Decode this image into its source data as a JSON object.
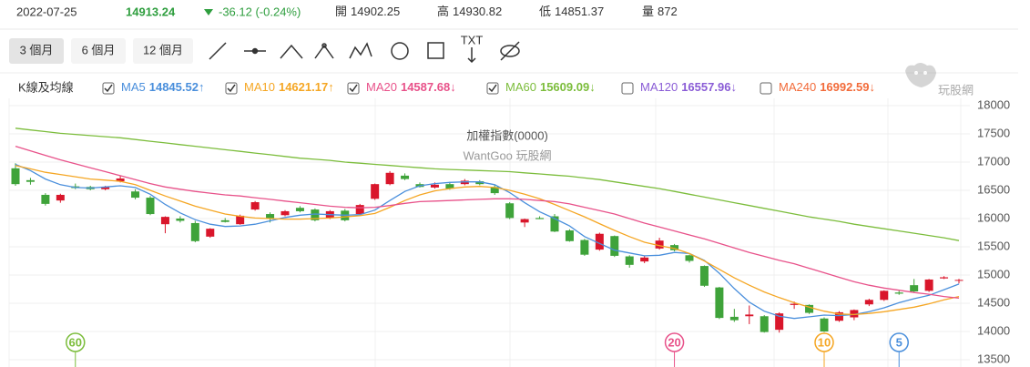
{
  "header": {
    "date": "2022-07-25",
    "price": "14913.24",
    "change": "-36.12 (-0.24%)",
    "stats": [
      {
        "label": "開",
        "value": "14902.25"
      },
      {
        "label": "高",
        "value": "14930.82"
      },
      {
        "label": "低",
        "value": "14851.37"
      },
      {
        "label": "量",
        "value": "872"
      }
    ]
  },
  "toolbar": {
    "ranges": [
      "3 個月",
      "6 個月",
      "12 個月"
    ],
    "active": 0,
    "text_tool": "TXT"
  },
  "legend_title": "K線及均線",
  "watermark": "玩股網",
  "chart_data": {
    "type": "candlestick",
    "title": "加權指數(0000)",
    "subtitle": "WantGoo 玩股網",
    "up_color": "#d9162b",
    "down_color": "#3fa33a",
    "grid": true,
    "ylim": [
      13500,
      18000
    ],
    "yticks": [
      13500,
      14000,
      14500,
      15000,
      15500,
      16000,
      16500,
      17000,
      17500,
      18000
    ],
    "candles": [
      [
        16890,
        16980,
        16580,
        16610
      ],
      [
        16680,
        16720,
        16600,
        16650
      ],
      [
        16420,
        16450,
        16230,
        16260
      ],
      [
        16320,
        16440,
        16280,
        16420
      ],
      [
        16570,
        16620,
        16520,
        16540
      ],
      [
        16560,
        16580,
        16500,
        16520
      ],
      [
        16520,
        16580,
        16500,
        16560
      ],
      [
        16660,
        16760,
        16640,
        16710
      ],
      [
        16480,
        16520,
        16340,
        16370
      ],
      [
        16370,
        16400,
        16060,
        16080
      ],
      [
        15900,
        16040,
        15740,
        16030
      ],
      [
        16000,
        16040,
        15930,
        15960
      ],
      [
        15920,
        15960,
        15580,
        15600
      ],
      [
        15680,
        15830,
        15660,
        15820
      ],
      [
        15970,
        16010,
        15930,
        15940
      ],
      [
        15900,
        16070,
        15890,
        16050
      ],
      [
        16160,
        16310,
        16140,
        16290
      ],
      [
        16080,
        16110,
        15930,
        16000
      ],
      [
        16060,
        16150,
        16040,
        16130
      ],
      [
        16190,
        16220,
        16110,
        16130
      ],
      [
        16160,
        16180,
        15950,
        15970
      ],
      [
        16010,
        16150,
        15990,
        16130
      ],
      [
        16140,
        16170,
        15950,
        15970
      ],
      [
        16080,
        16260,
        16060,
        16240
      ],
      [
        16350,
        16620,
        16330,
        16610
      ],
      [
        16610,
        16840,
        16590,
        16810
      ],
      [
        16760,
        16800,
        16680,
        16700
      ],
      [
        16610,
        16640,
        16550,
        16560
      ],
      [
        16550,
        16640,
        16530,
        16600
      ],
      [
        16610,
        16650,
        16510,
        16530
      ],
      [
        16610,
        16700,
        16590,
        16670
      ],
      [
        16660,
        16680,
        16590,
        16610
      ],
      [
        16560,
        16600,
        16420,
        16450
      ],
      [
        16270,
        16290,
        15990,
        16010
      ],
      [
        15930,
        16000,
        15850,
        15990
      ],
      [
        16010,
        16040,
        15990,
        15990
      ],
      [
        16040,
        16080,
        15760,
        15770
      ],
      [
        15790,
        15810,
        15590,
        15600
      ],
      [
        15620,
        15640,
        15340,
        15360
      ],
      [
        15450,
        15750,
        15430,
        15730
      ],
      [
        15690,
        15700,
        15320,
        15340
      ],
      [
        15330,
        15350,
        15130,
        15180
      ],
      [
        15240,
        15340,
        15210,
        15310
      ],
      [
        15470,
        15660,
        15450,
        15610
      ],
      [
        15530,
        15550,
        15420,
        15440
      ],
      [
        15350,
        15360,
        15220,
        15250
      ],
      [
        15160,
        15170,
        14790,
        14810
      ],
      [
        14780,
        14790,
        14220,
        14240
      ],
      [
        14260,
        14400,
        14170,
        14200
      ],
      [
        14270,
        14460,
        14130,
        14300
      ],
      [
        14270,
        14290,
        13980,
        13990
      ],
      [
        14030,
        14340,
        13980,
        14320
      ],
      [
        14470,
        14530,
        14400,
        14490
      ],
      [
        14470,
        14480,
        14310,
        14330
      ],
      [
        14230,
        14250,
        13990,
        14000
      ],
      [
        14190,
        14360,
        14170,
        14340
      ],
      [
        14250,
        14390,
        14200,
        14380
      ],
      [
        14480,
        14580,
        14450,
        14560
      ],
      [
        14560,
        14730,
        14540,
        14720
      ],
      [
        14690,
        14720,
        14650,
        14670
      ],
      [
        14820,
        14930,
        14690,
        14710
      ],
      [
        14720,
        14930,
        14700,
        14920
      ],
      [
        14940,
        14980,
        14930,
        14960
      ],
      [
        14902.25,
        14930.82,
        14851.37,
        14913.24
      ]
    ],
    "series": [
      {
        "name": "MA5",
        "color": "#4a8fdc",
        "checked": true,
        "last": 14845.52,
        "trend": "↑",
        "marker": 5,
        "values": [
          16960,
          16850,
          16700,
          16600,
          16550,
          16540,
          16560,
          16580,
          16550,
          16430,
          16250,
          16100,
          15980,
          15900,
          15860,
          15870,
          15900,
          15960,
          16020,
          16060,
          16080,
          16070,
          16060,
          16070,
          16150,
          16320,
          16480,
          16580,
          16620,
          16640,
          16650,
          16650,
          16600,
          16460,
          16280,
          16120,
          16000,
          15870,
          15680,
          15560,
          15440,
          15390,
          15340,
          15350,
          15400,
          15380,
          15260,
          15030,
          14760,
          14520,
          14360,
          14270,
          14230,
          14260,
          14290,
          14280,
          14300,
          14350,
          14420,
          14510,
          14580,
          14640,
          14740,
          14840
        ]
      },
      {
        "name": "MA10",
        "color": "#f5a623",
        "checked": true,
        "last": 14621.17,
        "trend": "↑",
        "marker": 10,
        "values": [
          16940,
          16880,
          16820,
          16780,
          16740,
          16700,
          16680,
          16660,
          16600,
          16500,
          16400,
          16310,
          16220,
          16150,
          16080,
          16040,
          16010,
          16000,
          15990,
          15990,
          16000,
          16010,
          16030,
          16050,
          16090,
          16200,
          16320,
          16420,
          16490,
          16530,
          16560,
          16570,
          16550,
          16500,
          16430,
          16350,
          16250,
          16140,
          16030,
          15910,
          15790,
          15680,
          15580,
          15520,
          15470,
          15380,
          15250,
          15100,
          14950,
          14820,
          14700,
          14600,
          14510,
          14430,
          14360,
          14310,
          14300,
          14320,
          14350,
          14390,
          14430,
          14490,
          14560,
          14620
        ]
      },
      {
        "name": "MA20",
        "color": "#e8528a",
        "checked": true,
        "last": 14587.68,
        "trend": "↓",
        "marker": 20,
        "values": [
          17280,
          17200,
          17120,
          17040,
          16970,
          16900,
          16830,
          16760,
          16690,
          16620,
          16560,
          16520,
          16480,
          16450,
          16420,
          16400,
          16370,
          16340,
          16310,
          16280,
          16250,
          16220,
          16200,
          16190,
          16200,
          16230,
          16270,
          16300,
          16310,
          16320,
          16330,
          16340,
          16350,
          16350,
          16340,
          16320,
          16300,
          16260,
          16200,
          16140,
          16080,
          16000,
          15920,
          15850,
          15780,
          15710,
          15640,
          15560,
          15480,
          15400,
          15330,
          15260,
          15200,
          15120,
          15040,
          14960,
          14880,
          14820,
          14770,
          14730,
          14690,
          14660,
          14620,
          14590
        ]
      },
      {
        "name": "MA60",
        "color": "#7cbd3c",
        "checked": true,
        "last": 15609.09,
        "trend": "↓",
        "marker": 60,
        "values": [
          17600,
          17570,
          17540,
          17510,
          17490,
          17470,
          17450,
          17430,
          17400,
          17370,
          17340,
          17310,
          17280,
          17250,
          17220,
          17190,
          17160,
          17130,
          17100,
          17070,
          17050,
          17030,
          17000,
          16980,
          16960,
          16940,
          16920,
          16900,
          16880,
          16870,
          16860,
          16850,
          16840,
          16830,
          16810,
          16790,
          16770,
          16750,
          16720,
          16690,
          16650,
          16610,
          16570,
          16530,
          16480,
          16430,
          16380,
          16330,
          16280,
          16230,
          16180,
          16130,
          16080,
          16030,
          15990,
          15950,
          15900,
          15860,
          15820,
          15780,
          15740,
          15700,
          15660,
          15610
        ]
      },
      {
        "name": "MA120",
        "color": "#8a5cd6",
        "checked": false,
        "last": 16557.96,
        "trend": "↓"
      },
      {
        "name": "MA240",
        "color": "#f26b3a",
        "checked": false,
        "last": 16992.59,
        "trend": "↓"
      }
    ]
  }
}
